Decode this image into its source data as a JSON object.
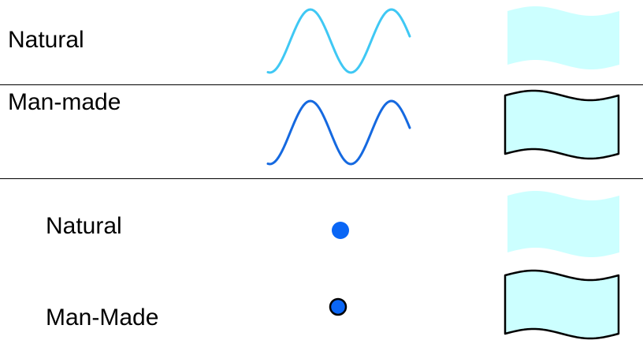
{
  "legend": {
    "rows": [
      {
        "label": "Natural",
        "symbol": "wave-line-icon",
        "area": "wavy-area-no-border-icon"
      },
      {
        "label": "Man-made",
        "symbol": "wave-line-icon",
        "area": "wavy-area-bordered-icon"
      }
    ],
    "point_rows": [
      {
        "label": "Natural",
        "symbol": "filled-dot-icon",
        "area": "wavy-area-no-border-icon"
      },
      {
        "label": "Man-Made",
        "symbol": "outlined-dot-icon",
        "area": "wavy-area-bordered-icon"
      }
    ]
  },
  "colors": {
    "natural_line": "#3fc8f4",
    "manmade_line": "#1569e0",
    "dot_fill": "#0a66f5",
    "area_fill": "#ccffff",
    "border": "#000000",
    "divider": "#000000"
  }
}
